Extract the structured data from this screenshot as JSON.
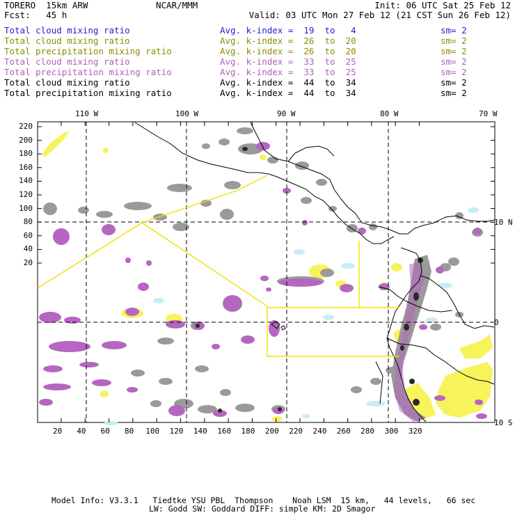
{
  "header": {
    "model": "TORERO  15km ARW",
    "center": "NCAR/MMM",
    "init": "Init: 06 UTC Sat 25 Feb 12",
    "fcst": "Fcst:   45 h",
    "valid": "Valid: 03 UTC Mon 27 Feb 12 (21 CST Sun 26 Feb 12)"
  },
  "legend": [
    {
      "field": "Total cloud mixing ratio",
      "kindex": "Avg. k-index =  19  to   4",
      "sm": "sm= 2",
      "color": "#1f1fd0"
    },
    {
      "field": "Total cloud mixing ratio",
      "kindex": "Avg. k-index =  26  to  20",
      "sm": "sm= 2",
      "color": "#8c8c00"
    },
    {
      "field": "Total precipitation mixing ratio",
      "kindex": "Avg. k-index =  26  to  20",
      "sm": "sm= 2",
      "color": "#8c8c00"
    },
    {
      "field": "Total cloud mixing ratio",
      "kindex": "Avg. k-index =  33  to  25",
      "sm": "sm= 2",
      "color": "#b060b8"
    },
    {
      "field": "Total precipitation mixing ratio",
      "kindex": "Avg. k-index =  33  to  25",
      "sm": "sm= 2",
      "color": "#b060b8"
    },
    {
      "field": "Total cloud mixing ratio",
      "kindex": "Avg. k-index =  44  to  34",
      "sm": "sm= 2",
      "color": "#000000"
    },
    {
      "field": "Total precipitation mixing ratio",
      "kindex": "Avg. k-index =  44  to  34",
      "sm": "sm= 2",
      "color": "#000000"
    }
  ],
  "axes": {
    "top_labels": [
      "110 W",
      "100 W",
      "90 W",
      "80 W",
      "70 W"
    ],
    "right_labels": [
      "10 N",
      "0",
      "10 S"
    ],
    "left_labels": [
      "220",
      "200",
      "180",
      "160",
      "140",
      "120",
      "100",
      "80",
      "60",
      "40",
      "20"
    ],
    "bottom_labels": [
      "20",
      "40",
      "60",
      "80",
      "100",
      "120",
      "140",
      "160",
      "180",
      "200",
      "220",
      "240",
      "260",
      "280",
      "300",
      "320"
    ]
  },
  "colors": {
    "gray": "#9a9a9a",
    "purple": "#b566c0",
    "yellow": "#f7f35a",
    "cyan": "#c8ecf8",
    "overlay": "#f0e000"
  },
  "footer": {
    "line1": "Model Info: V3.3.1   Tiedtke YSU PBL  Thompson    Noah LSM  15 km,   44 levels,   66 sec",
    "line2": "LW: Godd SW: Goddard DIFF: simple KM: 2D Smagor"
  }
}
